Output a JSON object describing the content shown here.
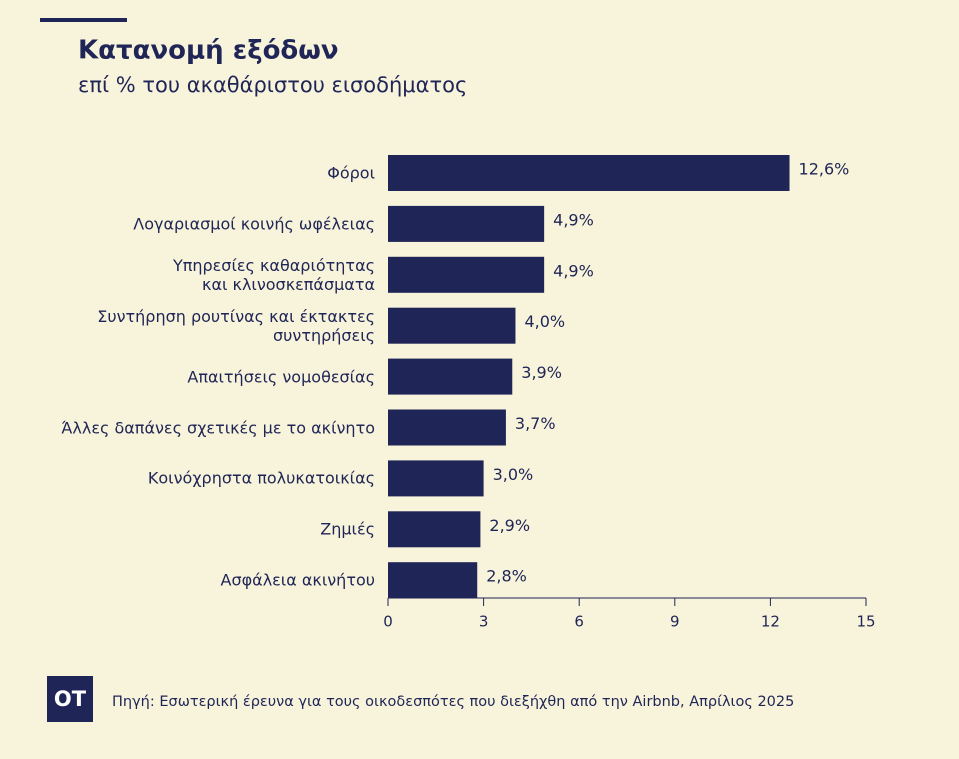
{
  "chart_data": {
    "type": "hbar",
    "title": "Κατανομή εξόδων",
    "subtitle": "επί % του ακαθάριστου εισοδήματος",
    "categories": [
      "Φόροι",
      "Λογαριασμοί κοινής ωφέλειας",
      "Υπηρεσίες καθαριότητας\nκαι κλινοσκεπάσματα",
      "Συντήρηση ρουτίνας και έκτακτες\nσυντηρήσεις",
      "Απαιτήσεις νομοθεσίας",
      "Άλλες δαπάνες σχετικές με το ακίνητο",
      "Κοινόχρηστα πολυκατοικίας",
      "Ζημιές",
      "Ασφάλεια ακινήτου"
    ],
    "values": [
      12.6,
      4.9,
      4.9,
      4.0,
      3.9,
      3.7,
      3.0,
      2.9,
      2.8
    ],
    "value_labels": [
      "12,6%",
      "4,9%",
      "4,9%",
      "4,0%",
      "3,9%",
      "3,7%",
      "3,0%",
      "2,9%",
      "2,8%"
    ],
    "color": "#1f2556",
    "xlim": [
      0,
      15
    ],
    "xticks": [
      0,
      3,
      6,
      9,
      12,
      15
    ],
    "source": "Πηγή: Εσωτερική έρευνα για τους οικοδεσπότες που διεξήχθη από την Airbnb, Απρίλιος 2025",
    "logo": "OT"
  }
}
